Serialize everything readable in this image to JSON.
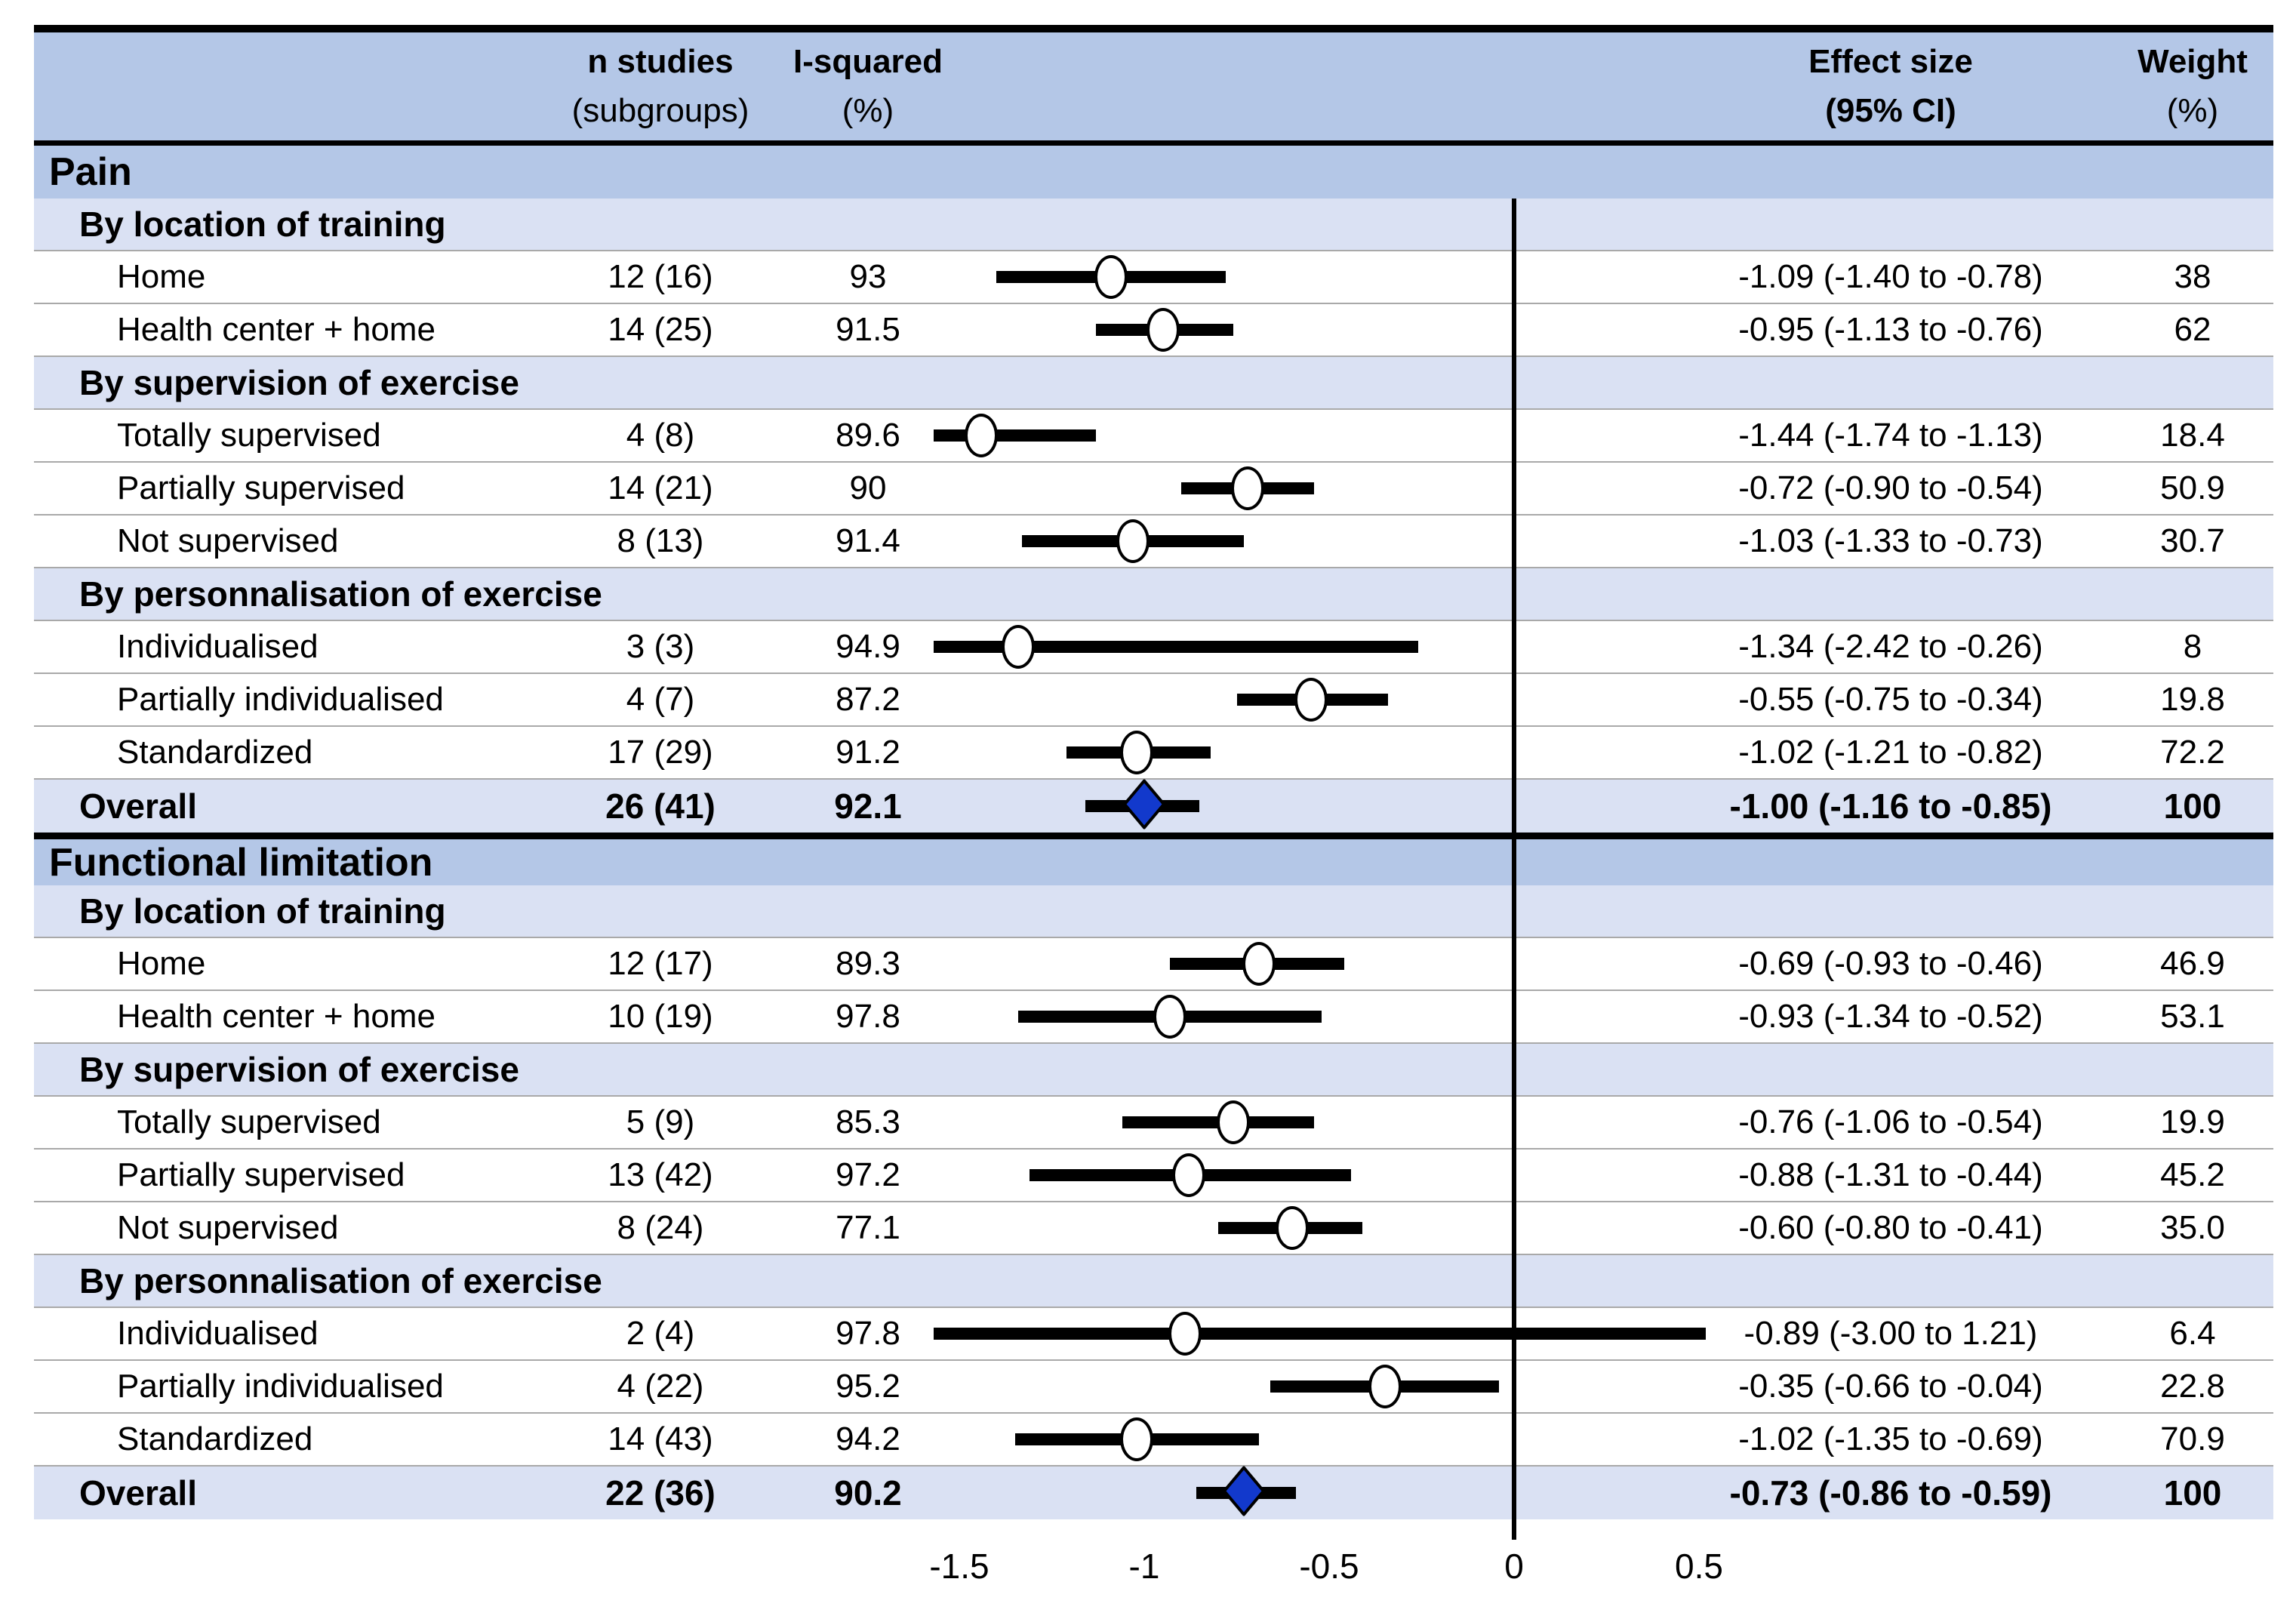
{
  "table_header": {
    "n_studies_1": "n studies",
    "n_studies_2": "(subgroups)",
    "i_squared_1": "I-squared",
    "i_squared_2": "(%)",
    "effect_size_1": "Effect size",
    "effect_size_2": "(95% CI)",
    "weight_1": "Weight",
    "weight_2": "(%)"
  },
  "colors": {
    "section_header_bg": "#b4c7e7",
    "subgroup_header_bg": "#dae1f3",
    "overall_row_bg": "#dae1f3",
    "data_row_bg": "#ffffff",
    "separator_line": "#a9a9a9",
    "diamond_fill": "#1239cc",
    "marker_stroke": "#000000"
  },
  "chart_data": {
    "type": "scatter",
    "subtype": "forest-plot",
    "xlabel": "Effect size (95% CI)",
    "xlim": [
      -1.57,
      0.58
    ],
    "zero_reference_line": 0,
    "grid": false,
    "axis_ticks": {
      "labels": [
        "-1.5",
        "-1",
        "-0.5",
        "0",
        "0.5"
      ],
      "values": [
        -1.5,
        -1,
        -0.5,
        0,
        0.5
      ]
    },
    "sections": [
      {
        "title": "Pain",
        "groups": [
          {
            "title": "By location of training",
            "rows": [
              {
                "label": "Home",
                "n_studies": "12 (16)",
                "i_squared": "93",
                "effect": -1.09,
                "ci_low": -1.4,
                "ci_high": -0.78,
                "effect_text": "-1.09 (-1.40 to -0.78)",
                "weight": "38"
              },
              {
                "label": "Health center + home",
                "n_studies": "14 (25)",
                "i_squared": "91.5",
                "effect": -0.95,
                "ci_low": -1.13,
                "ci_high": -0.76,
                "effect_text": "-0.95 (-1.13 to -0.76)",
                "weight": "62"
              }
            ]
          },
          {
            "title": "By supervision of exercise",
            "rows": [
              {
                "label": "Totally supervised",
                "n_studies": "4 (8)",
                "i_squared": "89.6",
                "effect": -1.44,
                "ci_low": -1.74,
                "ci_high": -1.13,
                "effect_text": "-1.44 (-1.74 to -1.13)",
                "weight": "18.4"
              },
              {
                "label": "Partially supervised",
                "n_studies": "14 (21)",
                "i_squared": "90",
                "effect": -0.72,
                "ci_low": -0.9,
                "ci_high": -0.54,
                "effect_text": "-0.72 (-0.90 to -0.54)",
                "weight": "50.9"
              },
              {
                "label": "Not supervised",
                "n_studies": "8 (13)",
                "i_squared": "91.4",
                "effect": -1.03,
                "ci_low": -1.33,
                "ci_high": -0.73,
                "effect_text": "-1.03 (-1.33 to -0.73)",
                "weight": "30.7"
              }
            ]
          },
          {
            "title": "By personnalisation of exercise",
            "rows": [
              {
                "label": "Individualised",
                "n_studies": "3 (3)",
                "i_squared": "94.9",
                "effect": -1.34,
                "ci_low": -2.42,
                "ci_high": -0.26,
                "effect_text": "-1.34 (-2.42 to -0.26)",
                "weight": "8"
              },
              {
                "label": "Partially individualised",
                "n_studies": "4 (7)",
                "i_squared": "87.2",
                "effect": -0.55,
                "ci_low": -0.75,
                "ci_high": -0.34,
                "effect_text": "-0.55 (-0.75 to -0.34)",
                "weight": "19.8"
              },
              {
                "label": "Standardized",
                "n_studies": "17 (29)",
                "i_squared": "91.2",
                "effect": -1.02,
                "ci_low": -1.21,
                "ci_high": -0.82,
                "effect_text": "-1.02 (-1.21 to -0.82)",
                "weight": "72.2"
              }
            ]
          }
        ],
        "overall": {
          "label": "Overall",
          "n_studies": "26 (41)",
          "i_squared": "92.1",
          "effect": -1.0,
          "ci_low": -1.16,
          "ci_high": -0.85,
          "effect_text": "-1.00 (-1.16 to -0.85)",
          "weight": "100"
        }
      },
      {
        "title": "Functional limitation",
        "groups": [
          {
            "title": "By location of training",
            "rows": [
              {
                "label": "Home",
                "n_studies": "12 (17)",
                "i_squared": "89.3",
                "effect": -0.69,
                "ci_low": -0.93,
                "ci_high": -0.46,
                "effect_text": "-0.69 (-0.93 to -0.46)",
                "weight": "46.9"
              },
              {
                "label": "Health center + home",
                "n_studies": "10 (19)",
                "i_squared": "97.8",
                "effect": -0.93,
                "ci_low": -1.34,
                "ci_high": -0.52,
                "effect_text": "-0.93 (-1.34 to -0.52)",
                "weight": "53.1"
              }
            ]
          },
          {
            "title": "By supervision of exercise",
            "rows": [
              {
                "label": "Totally supervised",
                "n_studies": "5 (9)",
                "i_squared": "85.3",
                "effect": -0.76,
                "ci_low": -1.06,
                "ci_high": -0.54,
                "effect_text": "-0.76 (-1.06 to -0.54)",
                "weight": "19.9"
              },
              {
                "label": "Partially supervised",
                "n_studies": "13 (42)",
                "i_squared": "97.2",
                "effect": -0.88,
                "ci_low": -1.31,
                "ci_high": -0.44,
                "effect_text": "-0.88 (-1.31 to -0.44)",
                "weight": "45.2"
              },
              {
                "label": "Not supervised",
                "n_studies": "8 (24)",
                "i_squared": "77.1",
                "effect": -0.6,
                "ci_low": -0.8,
                "ci_high": -0.41,
                "effect_text": "-0.60 (-0.80 to -0.41)",
                "weight": "35.0"
              }
            ]
          },
          {
            "title": "By personnalisation of exercise",
            "rows": [
              {
                "label": "Individualised",
                "n_studies": "2 (4)",
                "i_squared": "97.8",
                "effect": -0.89,
                "ci_low": -3.0,
                "ci_high": 1.21,
                "effect_text": "-0.89 (-3.00 to 1.21)",
                "weight": "6.4"
              },
              {
                "label": "Partially individualised",
                "n_studies": "4 (22)",
                "i_squared": "95.2",
                "effect": -0.35,
                "ci_low": -0.66,
                "ci_high": -0.04,
                "effect_text": "-0.35 (-0.66 to -0.04)",
                "weight": "22.8"
              },
              {
                "label": "Standardized",
                "n_studies": "14 (43)",
                "i_squared": "94.2",
                "effect": -1.02,
                "ci_low": -1.35,
                "ci_high": -0.69,
                "effect_text": "-1.02 (-1.35 to -0.69)",
                "weight": "70.9"
              }
            ]
          }
        ],
        "overall": {
          "label": "Overall",
          "n_studies": "22 (36)",
          "i_squared": "90.2",
          "effect": -0.73,
          "ci_low": -0.86,
          "ci_high": -0.59,
          "effect_text": "-0.73 (-0.86 to -0.59)",
          "weight": "100"
        }
      }
    ]
  }
}
